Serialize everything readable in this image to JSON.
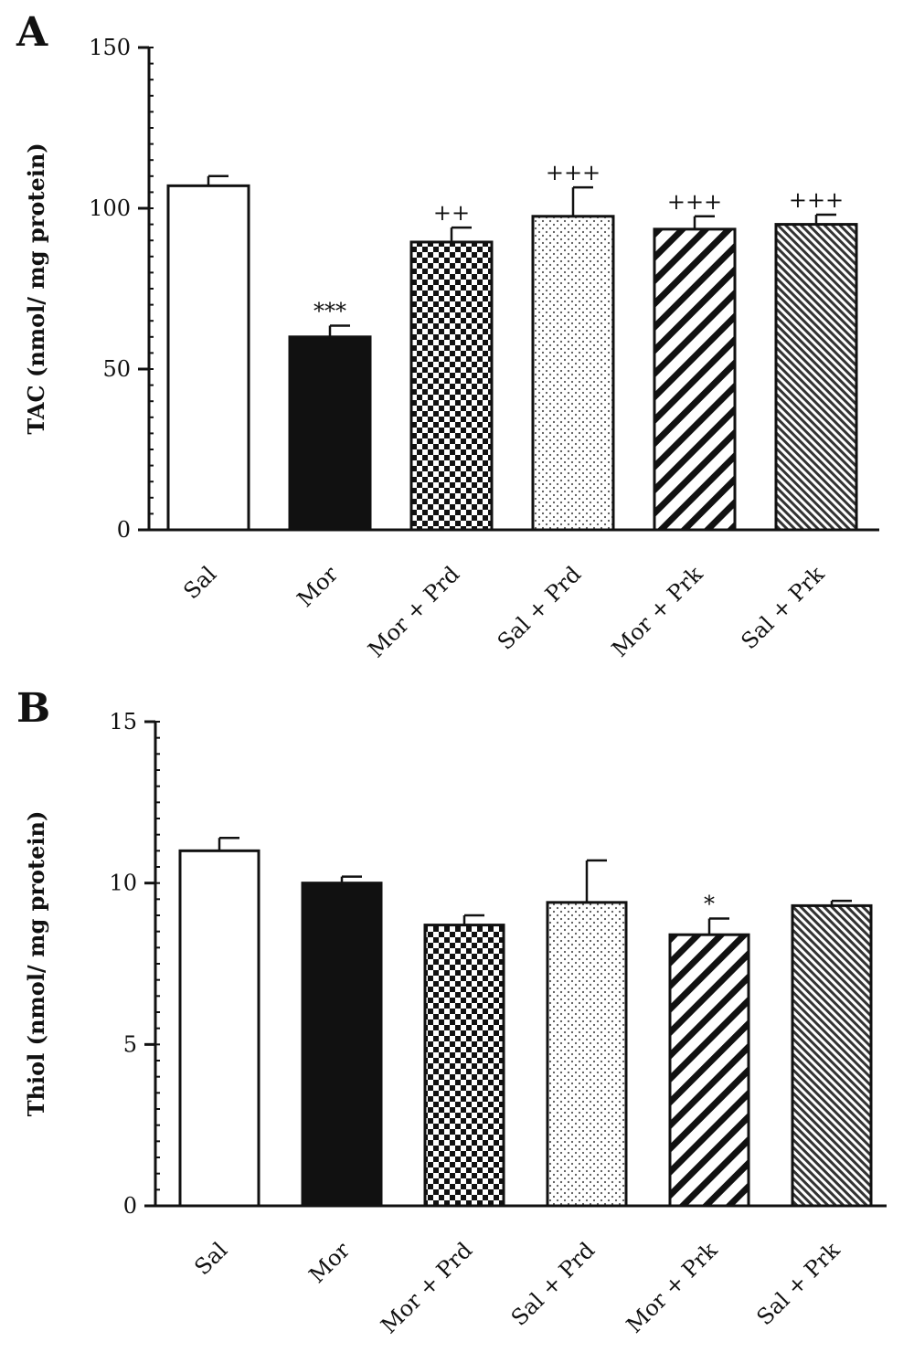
{
  "chart_data": [
    {
      "panel": "A",
      "type": "bar",
      "categories": [
        "Sal",
        "Mor",
        "Mor + Prd",
        "Sal + Prd",
        "Mor + Prk",
        "Sal + Prk"
      ],
      "values": [
        107,
        60,
        89.5,
        97.5,
        93.5,
        95
      ],
      "errors": [
        3,
        3.5,
        4.5,
        9,
        4,
        3
      ],
      "annotations": [
        "",
        "***",
        "++",
        "+++",
        "+++",
        "+++"
      ],
      "patterns": [
        "white",
        "black",
        "checker",
        "dots",
        "diag-wide",
        "diag-fine"
      ],
      "xlabel": "",
      "ylabel": "TAC (nmol/ mg protein)",
      "ylim": [
        0,
        150
      ],
      "yticks": [
        0,
        50,
        100,
        150
      ],
      "grid": false,
      "legend": "none"
    },
    {
      "panel": "B",
      "type": "bar",
      "categories": [
        "Sal",
        "Mor",
        "Mor + Prd",
        "Sal + Prd",
        "Mor + Prk",
        "Sal + Prk"
      ],
      "values": [
        11,
        10,
        8.7,
        9.4,
        8.4,
        9.3
      ],
      "errors": [
        0.4,
        0.2,
        0.3,
        1.3,
        0.5,
        0.15
      ],
      "annotations": [
        "",
        "",
        "",
        "",
        "*",
        ""
      ],
      "patterns": [
        "white",
        "black",
        "checker",
        "dots",
        "diag-wide",
        "diag-fine"
      ],
      "xlabel": "",
      "ylabel": "Thiol (nmol/ mg protein)",
      "ylim": [
        0,
        15
      ],
      "yticks": [
        0,
        5,
        10,
        15
      ],
      "grid": false,
      "legend": "none"
    }
  ]
}
